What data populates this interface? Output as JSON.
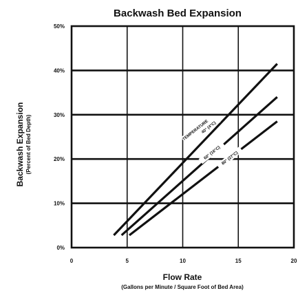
{
  "chart_data": {
    "type": "line",
    "title": "Backwash Bed Expansion",
    "xlabel": "Flow Rate",
    "xlabel_sub": "(Gallons per Minute / Square Foot of Bed Area)",
    "ylabel": "Backwash Expansion",
    "ylabel_sub": "(Percent of Bed Depth)",
    "xlim": [
      0,
      20
    ],
    "ylim": [
      0,
      50
    ],
    "x_ticks": [
      0,
      5,
      10,
      15,
      20
    ],
    "x_tick_labels": [
      "0",
      "5",
      "10",
      "15",
      "20"
    ],
    "y_ticks": [
      0,
      10,
      20,
      30,
      40,
      50
    ],
    "y_tick_labels": [
      "0%",
      "10%",
      "20%",
      "30%",
      "40%",
      "50%"
    ],
    "grid": true,
    "series": [
      {
        "name": "40° (4°C)",
        "x": [
          3.8,
          18.5
        ],
        "y": [
          2.8,
          41.5
        ]
      },
      {
        "name": "60° (16°C)",
        "x": [
          4.5,
          18.5
        ],
        "y": [
          2.8,
          34
        ]
      },
      {
        "name": "80° (27°C)",
        "x": [
          5.2,
          18.5
        ],
        "y": [
          2.8,
          28.5
        ]
      }
    ],
    "annotation": {
      "heading": "TEMPERATURE",
      "labels": [
        "40° (4°C)",
        "60° (16°C)",
        "80° (27°C)"
      ]
    },
    "colors": {
      "line": "#111111",
      "grid": "#111111",
      "background": "#ffffff"
    }
  }
}
